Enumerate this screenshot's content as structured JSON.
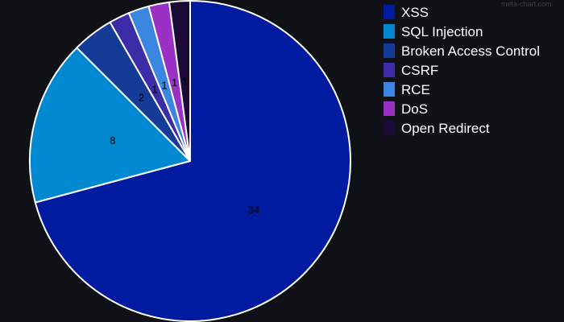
{
  "watermark": "meta-chart.com",
  "chart_data": {
    "type": "pie",
    "title": "",
    "start_angle_deg": 0,
    "direction": "clockwise",
    "slices": [
      {
        "label": "XSS",
        "value": 34,
        "color": "#001aa0"
      },
      {
        "label": "SQL Injection",
        "value": 8,
        "color": "#0088d0"
      },
      {
        "label": "Broken Access Control",
        "value": 2,
        "color": "#143c96"
      },
      {
        "label": "CSRF",
        "value": 1,
        "color": "#3c2ca8"
      },
      {
        "label": "RCE",
        "value": 1,
        "color": "#3a86e0"
      },
      {
        "label": "DoS",
        "value": 1,
        "color": "#9a30c4"
      },
      {
        "label": "Open Redirect",
        "value": 1,
        "color": "#1a0a36"
      }
    ],
    "legend_position": "top-right",
    "slice_border_color": "#ffffff"
  }
}
